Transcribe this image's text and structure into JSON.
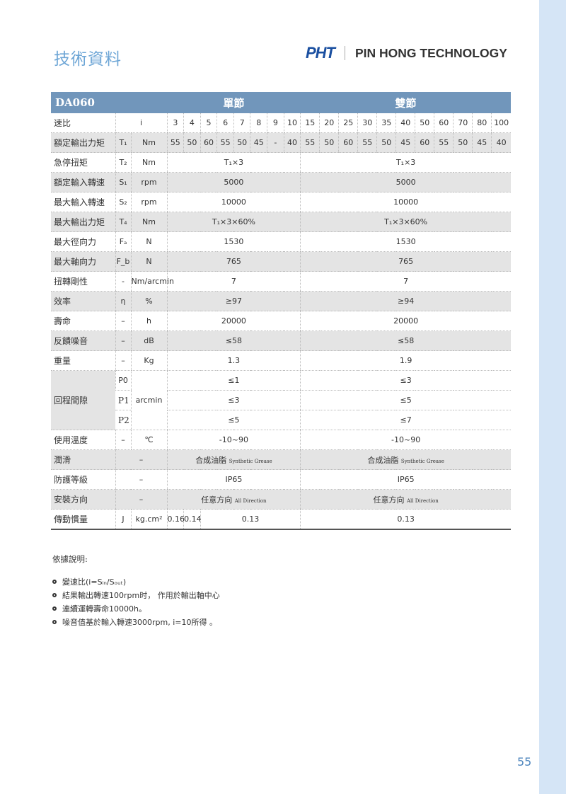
{
  "header": {
    "title": "技術資料",
    "logo_mark": "PHT",
    "company": "PIN HONG TECHNOLOGY"
  },
  "table": {
    "model": "DA060",
    "single_label": "單節",
    "double_label": "雙節",
    "ratio_label": "速比",
    "ratio_symbol": "i",
    "single_ratios": [
      "3",
      "4",
      "5",
      "6",
      "7",
      "8",
      "9",
      "10"
    ],
    "double_ratios": [
      "15",
      "20",
      "25",
      "30",
      "35",
      "40",
      "50",
      "60",
      "70",
      "80",
      "100"
    ],
    "rated_torque": {
      "label": "額定輸出力矩",
      "symbol": "T₁",
      "unit": "Nm",
      "single": [
        "55",
        "50",
        "60",
        "55",
        "50",
        "45",
        "-",
        "40"
      ],
      "double": [
        "55",
        "50",
        "60",
        "55",
        "50",
        "45",
        "60",
        "55",
        "50",
        "45",
        "40"
      ]
    },
    "rows": [
      {
        "label": "急停扭矩",
        "symbol": "T₂",
        "unit": "Nm",
        "single": "T₁×3",
        "double": "T₁×3"
      },
      {
        "label": "額定輸入轉速",
        "symbol": "S₁",
        "unit": "rpm",
        "single": "5000",
        "double": "5000"
      },
      {
        "label": "最大輸入轉速",
        "symbol": "S₂",
        "unit": "rpm",
        "single": "10000",
        "double": "10000"
      },
      {
        "label": "最大輸出力矩",
        "symbol": "T₄",
        "unit": "Nm",
        "single": "T₁×3×60%",
        "double": "T₁×3×60%"
      },
      {
        "label": "最大徑向力",
        "symbol": "Fₐ",
        "unit": "N",
        "single": "1530",
        "double": "1530"
      },
      {
        "label": "最大軸向力",
        "symbol": "F_b",
        "unit": "N",
        "single": "765",
        "double": "765"
      },
      {
        "label": "扭轉剛性",
        "symbol": "-",
        "unit": "Nm/arcmin",
        "single": "7",
        "double": "7"
      },
      {
        "label": "效率",
        "symbol": "η",
        "unit": "%",
        "single": "≥97",
        "double": "≥94"
      },
      {
        "label": "壽命",
        "symbol": "–",
        "unit": "h",
        "single": "20000",
        "double": "20000"
      },
      {
        "label": "反饋噪音",
        "symbol": "–",
        "unit": "dB",
        "single": "≤58",
        "double": "≤58"
      },
      {
        "label": "重量",
        "symbol": "–",
        "unit": "Kg",
        "single": "1.3",
        "double": "1.9"
      }
    ],
    "backlash": {
      "label": "回程間隙",
      "unit": "arcmin",
      "levels": [
        {
          "level": "P0",
          "single": "≤1",
          "double": "≤3"
        },
        {
          "level": "P1",
          "single": "≤3",
          "double": "≤5"
        },
        {
          "level": "P2",
          "single": "≤5",
          "double": "≤7"
        }
      ]
    },
    "temperature": {
      "label": "使用溫度",
      "symbol": "–",
      "unit": "℃",
      "single": "-10~90",
      "double": "-10~90"
    },
    "merged_rows": [
      {
        "label": "潤滑",
        "symbol": "–",
        "single": "合成油脂",
        "single_en": "Synthetic Grease",
        "double": "合成油脂",
        "double_en": "Synthetic Grease"
      },
      {
        "label": "防護等級",
        "symbol": "–",
        "single": "IP65",
        "single_en": "",
        "double": "IP65",
        "double_en": ""
      },
      {
        "label": "安裝方向",
        "symbol": "–",
        "single": "任意方向",
        "single_en": "All Direction",
        "double": "任意方向",
        "double_en": "All Direction"
      }
    ],
    "inertia": {
      "label": "傳動慣量",
      "symbol": "J",
      "unit": "kg.cm²",
      "r3": "0.16",
      "r4": "0.14",
      "single": "0.13",
      "double": "0.13"
    }
  },
  "notes": {
    "title": "依據說明:",
    "items": [
      "變速比(i=Sᵢₙ/Sₒᵤₜ)",
      "結果輸出轉速100rpm时， 作用於輸出軸中心",
      "連續運轉壽命10000h。",
      "噪音值基於輸入轉速3000rpm, i=10所得 。"
    ]
  },
  "page_number": "55",
  "colors": {
    "header_bar": "#7196bb",
    "title": "#6ea6d6",
    "logo": "#1a4fa0",
    "stripe": "#e4e4e4",
    "side_strip": "#d5e5f6"
  }
}
